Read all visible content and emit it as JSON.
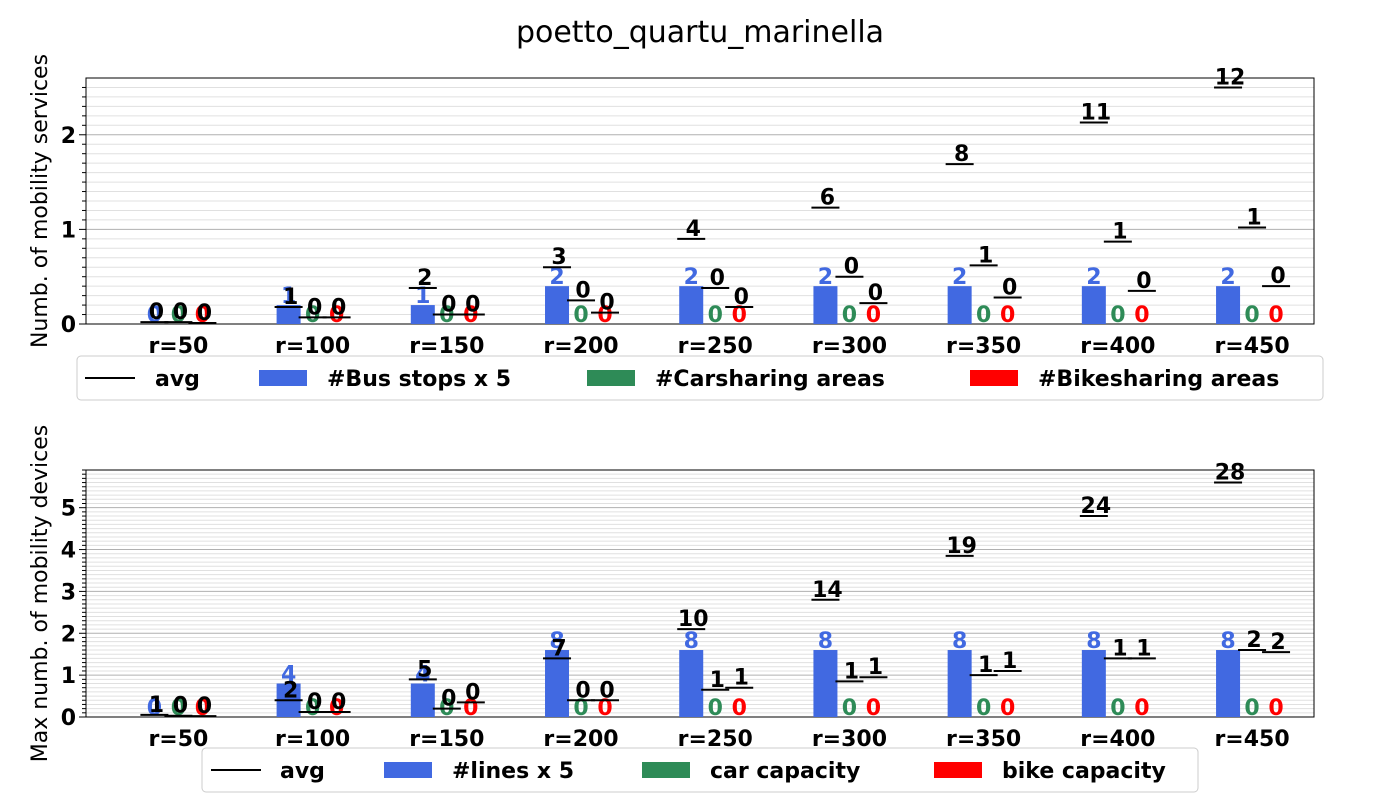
{
  "title": "poetto_quartu_marinella",
  "colors": {
    "bus": "#4169E1",
    "car": "#2E8B57",
    "bike": "#FF0000",
    "avg": "#000000",
    "grid": "#b0b0b0"
  },
  "chart_data": [
    {
      "type": "bar",
      "ylabel": "Numb. of mobility services",
      "ylim": [
        0,
        2.6
      ],
      "yticks": [
        "0",
        "1",
        "2"
      ],
      "grid": true,
      "legend_position": "below",
      "categories": [
        "r=50",
        "r=100",
        "r=150",
        "r=200",
        "r=250",
        "r=300",
        "r=350",
        "r=400",
        "r=450"
      ],
      "legend": [
        "avg",
        "#Bus stops x 5",
        "#Carsharing areas",
        "#Bikesharing areas"
      ],
      "bars": [
        {
          "name": "#Bus stops x 5",
          "values": [
            0,
            0.2,
            0.2,
            0.4,
            0.4,
            0.4,
            0.4,
            0.4,
            0.4
          ],
          "labels": [
            "0",
            "1",
            "1",
            "2",
            "2",
            "2",
            "2",
            "2",
            "2"
          ]
        },
        {
          "name": "#Carsharing areas",
          "values": [
            0,
            0,
            0,
            0,
            0,
            0,
            0,
            0,
            0
          ],
          "labels": [
            "0",
            "0",
            "0",
            "0",
            "0",
            "0",
            "0",
            "0",
            "0"
          ]
        },
        {
          "name": "#Bikesharing areas",
          "values": [
            0,
            0,
            0,
            0,
            0,
            0,
            0,
            0,
            0
          ],
          "labels": [
            "0",
            "0",
            "0",
            "0",
            "0",
            "0",
            "0",
            "0",
            "0"
          ]
        }
      ],
      "avg": [
        {
          "values": [
            0.02,
            0.18,
            0.38,
            0.6,
            0.9,
            1.23,
            1.69,
            2.13,
            2.5
          ],
          "labels": [
            "0",
            "1",
            "2",
            "3",
            "4",
            "6",
            "8",
            "11",
            "12"
          ]
        },
        {
          "values": [
            0.02,
            0.07,
            0.1,
            0.25,
            0.38,
            0.5,
            0.62,
            0.87,
            1.02
          ],
          "labels": [
            "0",
            "0",
            "0",
            "0",
            "0",
            "0",
            "1",
            "1",
            "1"
          ]
        },
        {
          "values": [
            0.01,
            0.07,
            0.1,
            0.12,
            0.18,
            0.22,
            0.28,
            0.35,
            0.4
          ],
          "labels": [
            "0",
            "0",
            "0",
            "0",
            "0",
            "0",
            "0",
            "0",
            "0"
          ]
        }
      ]
    },
    {
      "type": "bar",
      "ylabel": "Max numb. of mobility devices",
      "ylim": [
        0,
        5.9
      ],
      "yticks": [
        "0",
        "1",
        "2",
        "3",
        "4",
        "5"
      ],
      "grid": true,
      "legend_position": "below",
      "categories": [
        "r=50",
        "r=100",
        "r=150",
        "r=200",
        "r=250",
        "r=300",
        "r=350",
        "r=400",
        "r=450"
      ],
      "legend": [
        "avg",
        "#lines x 5",
        "car capacity",
        "bike capacity"
      ],
      "bars": [
        {
          "name": "#lines x 5",
          "values": [
            0,
            0.8,
            0.8,
            1.6,
            1.6,
            1.6,
            1.6,
            1.6,
            1.6
          ],
          "labels": [
            "0",
            "4",
            "4",
            "8",
            "8",
            "8",
            "8",
            "8",
            "8"
          ]
        },
        {
          "name": "car capacity",
          "values": [
            0,
            0,
            0,
            0,
            0,
            0,
            0,
            0,
            0
          ],
          "labels": [
            "0",
            "0",
            "0",
            "0",
            "0",
            "0",
            "0",
            "0",
            "0"
          ]
        },
        {
          "name": "bike capacity",
          "values": [
            0,
            0,
            0,
            0,
            0,
            0,
            0,
            0,
            0
          ],
          "labels": [
            "0",
            "0",
            "0",
            "0",
            "0",
            "0",
            "0",
            "0",
            "0"
          ]
        }
      ],
      "avg": [
        {
          "values": [
            0.05,
            0.4,
            0.9,
            1.4,
            2.1,
            2.8,
            3.85,
            4.8,
            5.6
          ],
          "labels": [
            "1",
            "2",
            "5",
            "7",
            "10",
            "14",
            "19",
            "24",
            "28"
          ]
        },
        {
          "values": [
            0.03,
            0.12,
            0.2,
            0.4,
            0.65,
            0.85,
            1.0,
            1.4,
            1.6
          ],
          "labels": [
            "0",
            "0",
            "0",
            "0",
            "1",
            "1",
            "1",
            "1",
            "2"
          ]
        },
        {
          "values": [
            0.02,
            0.12,
            0.35,
            0.4,
            0.7,
            0.95,
            1.1,
            1.4,
            1.55
          ],
          "labels": [
            "0",
            "0",
            "0",
            "0",
            "1",
            "1",
            "1",
            "1",
            "2"
          ]
        }
      ]
    }
  ]
}
